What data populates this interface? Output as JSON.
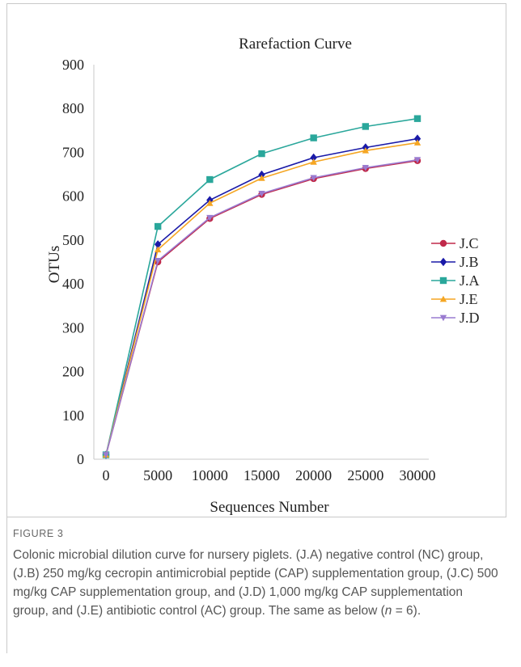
{
  "chart_data": {
    "type": "line",
    "title": "Rarefaction Curve",
    "xlabel": "Sequences Number",
    "ylabel": "OTUs",
    "x": [
      0,
      5000,
      10000,
      15000,
      20000,
      25000,
      30000
    ],
    "x_ticks": [
      "0",
      "5000",
      "10000",
      "15000",
      "20000",
      "25000",
      "30000"
    ],
    "y_ticks": [
      "0",
      "100",
      "200",
      "300",
      "400",
      "500",
      "600",
      "700",
      "800",
      "900"
    ],
    "ylim": [
      0,
      900
    ],
    "grid": false,
    "legend_position": "right",
    "series": [
      {
        "name": "J.C",
        "color": "#c0294a",
        "marker": "circle",
        "values": [
          10,
          450,
          549,
          604,
          640,
          663,
          681
        ]
      },
      {
        "name": "J.B",
        "color": "#1a1aa8",
        "marker": "diamond",
        "values": [
          10,
          490,
          591,
          649,
          688,
          711,
          731
        ]
      },
      {
        "name": "J.A",
        "color": "#2aa79b",
        "marker": "square",
        "values": [
          10,
          531,
          638,
          697,
          733,
          759,
          777
        ]
      },
      {
        "name": "J.E",
        "color": "#f5a623",
        "marker": "triangle",
        "values": [
          10,
          478,
          584,
          641,
          678,
          704,
          722
        ]
      },
      {
        "name": "J.D",
        "color": "#9a7bd0",
        "marker": "triangle-down",
        "values": [
          10,
          453,
          551,
          606,
          642,
          665,
          683
        ]
      }
    ]
  },
  "figure": {
    "label": "FIGURE 3",
    "caption_parts": [
      "Colonic microbial dilution curve for nursery piglets. (J.A) negative control (NC) group, (J.B) 250 mg/kg cecropin antimicrobial peptide (CAP) supplementation group, (J.C) 500 mg/kg CAP supplementation group, and (J.D) 1,000 mg/kg CAP supplementation group, and (J.E) antibiotic control (AC) group. The same as below (",
      "n",
      " = 6)."
    ]
  }
}
